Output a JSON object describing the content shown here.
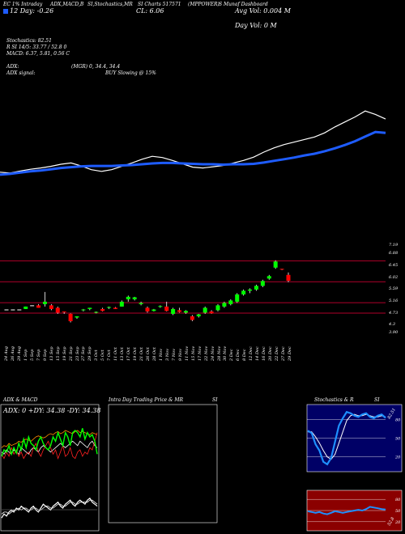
{
  "header": {
    "line1": [
      "EC 1% Intraday",
      "ADX,MACD,B",
      "SI,Stochastics,MR",
      "SI Charts 517571",
      "(MPPOWER)",
      "S Munaf Dashboard"
    ],
    "range_label": "12 Day: -0.26",
    "cl_label": "CL: 6.06",
    "avg_vol": "Avg Vol: 0.004  M",
    "day_vol": "Day Vol: 0   M"
  },
  "indicators": {
    "stochastics": "Stochastics: 82.51",
    "rsi": "R        SI 14/5: 33.77 / 52.8            0",
    "macd": "MACD: 6.37, 5.81, 0.56  C",
    "adx_label": "ADX:",
    "adx_value": "(MGR) 0, 34.4,  34.4",
    "adx_signal_label": "ADX  signal:",
    "adx_signal_value": "BUY Slowing @ 15%"
  },
  "price_axis": {
    "labels": [
      "7.19",
      "6.88",
      "6.45",
      "6.02",
      "5.59",
      "5.16",
      "4.73",
      "4.3",
      "3.90"
    ]
  },
  "dates": [
    "24 Aug",
    "26 Aug",
    "29 Aug",
    "1 Sep",
    "5 Sep",
    "7 Sep",
    "9 Sep",
    "13 Sep",
    "15 Sep",
    "19 Sep",
    "21 Sep",
    "23 Sep",
    "27 Sep",
    "29 Sep",
    "3 Oct",
    "5 Oct",
    "7 Oct",
    "11 Oct",
    "13 Oct",
    "17 Oct",
    "19 Oct",
    "21 Oct",
    "26 Oct",
    "28 Oct",
    "1 Nov",
    "3 Nov",
    "7 Nov",
    "9 Nov",
    "11 Nov",
    "15 Nov",
    "17 Nov",
    "22 Nov",
    "24 Nov",
    "28 Nov",
    "30 Nov",
    "2 Dec",
    "6 Dec",
    "8 Dec",
    "12 Dec",
    "14 Dec",
    "16 Dec",
    "20 Dec",
    "22 Dec",
    "27 Dec",
    "29 Dec"
  ],
  "panels": {
    "adx_macd_title": "ADX  & MACD",
    "adx_readout": "ADX: 0   +DY: 34.38  -DY: 34.38",
    "intraday_title": "Intra  Day Trading Price  & MR",
    "intraday_si": "SI",
    "stoch_title": "Stochastics & R",
    "stoch_si": "SI",
    "stoch_ticks": [
      "80",
      "50",
      "20"
    ],
    "stoch_value": "82.51",
    "rsi_ticks": [
      "80",
      "50",
      "20"
    ],
    "rsi_value": "52.8"
  },
  "chart_data": {
    "type": "candlestick",
    "ylim": [
      3.9,
      7.19
    ],
    "colors": {
      "up": "#00ff00",
      "down": "#ff0000",
      "ema": "#1e5cff",
      "price_line": "#ffffff",
      "level": "#b0002a"
    },
    "candles": [
      {
        "o": 4.88,
        "h": 4.88,
        "l": 4.88,
        "c": 4.88
      },
      {
        "o": 4.88,
        "h": 4.88,
        "l": 4.88,
        "c": 4.88
      },
      {
        "o": 4.88,
        "h": 4.88,
        "l": 4.88,
        "c": 4.88
      },
      {
        "o": 4.9,
        "h": 5.0,
        "l": 4.9,
        "c": 5.0
      },
      {
        "o": 5.05,
        "h": 5.05,
        "l": 5.05,
        "c": 5.05
      },
      {
        "o": 5.05,
        "h": 5.1,
        "l": 4.95,
        "c": 4.95
      },
      {
        "o": 5.1,
        "h": 5.6,
        "l": 5.0,
        "c": 5.2
      },
      {
        "o": 5.05,
        "h": 5.1,
        "l": 4.85,
        "c": 4.9
      },
      {
        "o": 4.95,
        "h": 5.0,
        "l": 4.7,
        "c": 4.75
      },
      {
        "o": 4.8,
        "h": 4.8,
        "l": 4.7,
        "c": 4.78
      },
      {
        "o": 4.7,
        "h": 4.72,
        "l": 4.35,
        "c": 4.4
      },
      {
        "o": 4.55,
        "h": 4.6,
        "l": 4.5,
        "c": 4.6
      },
      {
        "o": 4.85,
        "h": 4.9,
        "l": 4.8,
        "c": 4.88
      },
      {
        "o": 4.9,
        "h": 4.95,
        "l": 4.85,
        "c": 4.95
      },
      {
        "o": 4.75,
        "h": 4.8,
        "l": 4.72,
        "c": 4.78
      },
      {
        "o": 4.9,
        "h": 4.95,
        "l": 4.8,
        "c": 4.82
      },
      {
        "o": 4.95,
        "h": 5.0,
        "l": 4.9,
        "c": 4.98
      },
      {
        "o": 4.95,
        "h": 4.98,
        "l": 4.9,
        "c": 4.9
      },
      {
        "o": 5.0,
        "h": 5.25,
        "l": 5.0,
        "c": 5.2
      },
      {
        "o": 5.3,
        "h": 5.45,
        "l": 5.2,
        "c": 5.4
      },
      {
        "o": 5.3,
        "h": 5.4,
        "l": 5.25,
        "c": 5.38
      },
      {
        "o": 5.1,
        "h": 5.2,
        "l": 5.05,
        "c": 5.15
      },
      {
        "o": 4.95,
        "h": 5.0,
        "l": 4.75,
        "c": 4.8
      },
      {
        "o": 4.82,
        "h": 4.9,
        "l": 4.8,
        "c": 4.88
      },
      {
        "o": 5.0,
        "h": 5.05,
        "l": 4.95,
        "c": 5.02
      },
      {
        "o": 5.0,
        "h": 5.2,
        "l": 4.8,
        "c": 4.82
      },
      {
        "o": 4.7,
        "h": 4.95,
        "l": 4.65,
        "c": 4.9
      },
      {
        "o": 4.85,
        "h": 4.95,
        "l": 4.75,
        "c": 4.78
      },
      {
        "o": 4.75,
        "h": 4.85,
        "l": 4.7,
        "c": 4.82
      },
      {
        "o": 4.6,
        "h": 4.65,
        "l": 4.4,
        "c": 4.45
      },
      {
        "o": 4.6,
        "h": 4.7,
        "l": 4.55,
        "c": 4.68
      },
      {
        "o": 4.75,
        "h": 5.0,
        "l": 4.7,
        "c": 4.95
      },
      {
        "o": 4.8,
        "h": 4.85,
        "l": 4.7,
        "c": 4.72
      },
      {
        "o": 4.85,
        "h": 5.1,
        "l": 4.8,
        "c": 5.05
      },
      {
        "o": 5.0,
        "h": 5.2,
        "l": 4.95,
        "c": 5.15
      },
      {
        "o": 5.1,
        "h": 5.3,
        "l": 5.05,
        "c": 5.25
      },
      {
        "o": 5.2,
        "h": 5.55,
        "l": 5.15,
        "c": 5.5
      },
      {
        "o": 5.5,
        "h": 5.7,
        "l": 5.45,
        "c": 5.65
      },
      {
        "o": 5.65,
        "h": 5.75,
        "l": 5.55,
        "c": 5.7
      },
      {
        "o": 5.7,
        "h": 5.9,
        "l": 5.65,
        "c": 5.85
      },
      {
        "o": 5.85,
        "h": 6.1,
        "l": 5.8,
        "c": 6.05
      },
      {
        "o": 6.15,
        "h": 6.3,
        "l": 6.1,
        "c": 6.25
      },
      {
        "o": 6.6,
        "h": 6.9,
        "l": 6.55,
        "c": 6.85
      },
      {
        "o": 6.55,
        "h": 6.55,
        "l": 6.5,
        "c": 6.52
      },
      {
        "o": 6.3,
        "h": 6.4,
        "l": 6.0,
        "c": 6.06
      }
    ],
    "price_line": [
      4.9,
      4.88,
      4.93,
      4.97,
      5.0,
      5.04,
      5.09,
      5.12,
      5.05,
      4.96,
      4.92,
      4.96,
      5.04,
      5.12,
      5.21,
      5.28,
      5.25,
      5.18,
      5.1,
      5.02,
      5.0,
      5.03,
      5.06,
      5.12,
      5.18,
      5.26,
      5.38,
      5.48,
      5.56,
      5.62,
      5.68,
      5.74,
      5.84,
      5.98,
      6.1,
      6.22,
      6.36,
      6.28,
      6.17
    ],
    "ema_line": [
      4.84,
      4.86,
      4.89,
      4.92,
      4.94,
      4.97,
      5.0,
      5.02,
      5.04,
      5.05,
      5.05,
      5.05,
      5.06,
      5.07,
      5.09,
      5.11,
      5.12,
      5.12,
      5.11,
      5.1,
      5.09,
      5.09,
      5.08,
      5.09,
      5.09,
      5.1,
      5.13,
      5.17,
      5.21,
      5.25,
      5.3,
      5.34,
      5.4,
      5.47,
      5.55,
      5.64,
      5.75,
      5.86,
      5.84
    ],
    "levels": [
      6.88,
      6.02,
      5.16,
      4.73
    ],
    "adx": {
      "plus_di": [
        12,
        18,
        16,
        22,
        14,
        20,
        15,
        24,
        18,
        28,
        20,
        30,
        24,
        22,
        18,
        26,
        30,
        24,
        20,
        18,
        22,
        30,
        26,
        34,
        28,
        22,
        34,
        30,
        22,
        34,
        36,
        34,
        30,
        38,
        28,
        34,
        30,
        32,
        26,
        14
      ],
      "minus_di": [
        14,
        10,
        16,
        12,
        20,
        14,
        18,
        12,
        16,
        10,
        14,
        16,
        12,
        20,
        24,
        16,
        12,
        18,
        22,
        26,
        20,
        14,
        18,
        10,
        16,
        22,
        12,
        14,
        20,
        12,
        10,
        16,
        18,
        12,
        16,
        14,
        20,
        18,
        26,
        34
      ],
      "adx": [
        16,
        14,
        18,
        16,
        14,
        18,
        16,
        14,
        20,
        18,
        16,
        14,
        18,
        20,
        18,
        16,
        20,
        22,
        20,
        18,
        16,
        18,
        20,
        22,
        24,
        22,
        20,
        22,
        24,
        26,
        24,
        22,
        26,
        24,
        22,
        20,
        24,
        26,
        22,
        20
      ],
      "orange": [
        20,
        22,
        21,
        24,
        22,
        23,
        24,
        26,
        25,
        27,
        28,
        27,
        26,
        28,
        30,
        31,
        30,
        29,
        30,
        32,
        33,
        32,
        34,
        35,
        33,
        34,
        36,
        35,
        34,
        33,
        35,
        36,
        34,
        35,
        34,
        33,
        32,
        34,
        33,
        32
      ]
    },
    "macd": {
      "macd": [
        12,
        14,
        13,
        15,
        16,
        15,
        17,
        16,
        18,
        17,
        16,
        15,
        17,
        18,
        16,
        15,
        17,
        19,
        18,
        17,
        16,
        18,
        19,
        20,
        18,
        17,
        19,
        20,
        21,
        19,
        18,
        20,
        21,
        20,
        19,
        21,
        22,
        20,
        19,
        18
      ],
      "signal": [
        14,
        15,
        15,
        14,
        15,
        16,
        16,
        17,
        16,
        17,
        17,
        16,
        16,
        17,
        17,
        16,
        16,
        17,
        18,
        18,
        17,
        17,
        18,
        19,
        19,
        18,
        18,
        19,
        20,
        20,
        19,
        19,
        20,
        20,
        20,
        20,
        21,
        21,
        20,
        19
      ]
    },
    "stochastics": [
      62,
      58,
      40,
      30,
      12,
      8,
      18,
      44,
      70,
      82,
      92,
      90,
      86,
      84,
      88,
      90,
      84,
      82,
      86,
      88,
      82.51
    ],
    "stoch_smooth": [
      60,
      60,
      52,
      42,
      30,
      20,
      16,
      24,
      42,
      60,
      78,
      86,
      88,
      86,
      86,
      88,
      86,
      84,
      84,
      86,
      84
    ],
    "rsi": [
      48,
      46,
      44,
      46,
      42,
      40,
      44,
      48,
      46,
      44,
      46,
      48,
      50,
      52,
      50,
      54,
      60,
      58,
      56,
      54,
      52.8
    ]
  }
}
